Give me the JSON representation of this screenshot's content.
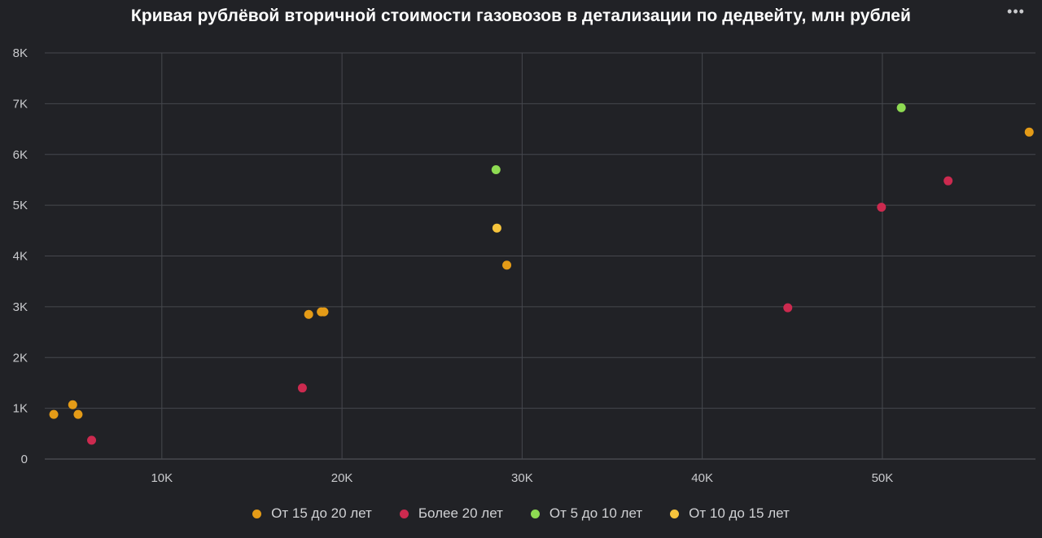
{
  "title": "Кривая рублёвой вторичной стоимости газовозов в детализации по дедвейту, млн рублей",
  "menu_icon": "more-horizontal-icon",
  "chart_data": {
    "type": "scatter",
    "title": "Кривая рублёвой вторичной стоимости газовозов в детализации по дедвейту, млн рублей",
    "xlabel": "",
    "ylabel": "",
    "xlim": [
      3500,
      58500
    ],
    "ylim": [
      0,
      8000
    ],
    "x_ticks": [
      10000,
      20000,
      30000,
      40000,
      50000
    ],
    "x_tick_labels": [
      "10K",
      "20K",
      "30K",
      "40K",
      "50K"
    ],
    "y_ticks": [
      0,
      1000,
      2000,
      3000,
      4000,
      5000,
      6000,
      7000,
      8000
    ],
    "y_tick_labels": [
      "0",
      "1K",
      "2K",
      "3K",
      "4K",
      "5K",
      "6K",
      "7K",
      "8K"
    ],
    "grid": true,
    "legend_position": "bottom",
    "series": [
      {
        "name": "От 15 до 20 лет",
        "color": "#e49b17",
        "points": [
          [
            4000,
            880
          ],
          [
            5050,
            1070
          ],
          [
            5350,
            880
          ],
          [
            18150,
            2850
          ],
          [
            18850,
            2900
          ],
          [
            19000,
            2900
          ],
          [
            29150,
            3820
          ],
          [
            58150,
            6440
          ]
        ]
      },
      {
        "name": "Более 20 лет",
        "color": "#cc2a4f",
        "points": [
          [
            6100,
            370
          ],
          [
            17800,
            1400
          ],
          [
            44750,
            2980
          ],
          [
            49950,
            4960
          ],
          [
            53650,
            5480
          ]
        ]
      },
      {
        "name": "От 5 до 10 лет",
        "color": "#8edb52",
        "points": [
          [
            28550,
            5700
          ],
          [
            51050,
            6920
          ]
        ]
      },
      {
        "name": "От 10 до 15 лет",
        "color": "#f6c43c",
        "points": [
          [
            28600,
            4550
          ]
        ]
      }
    ]
  }
}
